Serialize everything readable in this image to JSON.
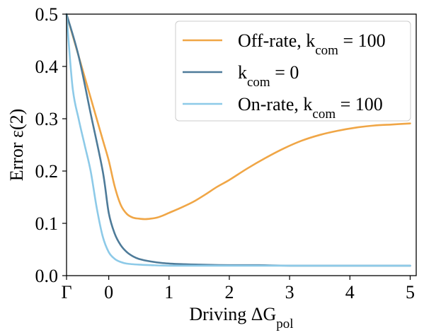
{
  "chart_data": {
    "type": "line",
    "xlabel": "Driving ΔG_pol",
    "ylabel": "Error ε(2)",
    "xlim": [
      -0.7,
      5.1
    ],
    "ylim": [
      0.0,
      0.5
    ],
    "x_ticks": [
      {
        "value": -0.7,
        "label": "Γ"
      },
      {
        "value": 0,
        "label": "0"
      },
      {
        "value": 1,
        "label": "1"
      },
      {
        "value": 2,
        "label": "2"
      },
      {
        "value": 3,
        "label": "3"
      },
      {
        "value": 4,
        "label": "4"
      },
      {
        "value": 5,
        "label": "5"
      }
    ],
    "y_ticks": [
      {
        "value": 0.0,
        "label": "0.0"
      },
      {
        "value": 0.1,
        "label": "0.1"
      },
      {
        "value": 0.2,
        "label": "0.2"
      },
      {
        "value": 0.3,
        "label": "0.3"
      },
      {
        "value": 0.4,
        "label": "0.4"
      },
      {
        "value": 0.5,
        "label": "0.5"
      }
    ],
    "grid": false,
    "legend_position": "top-right",
    "series": [
      {
        "name": "Off-rate, k_com = 100",
        "color": "#F0A646",
        "x": [
          -0.7,
          -0.5,
          -0.3,
          -0.1,
          0.0,
          0.1,
          0.2,
          0.3,
          0.4,
          0.5,
          0.6,
          0.7,
          0.8,
          0.9,
          1.0,
          1.2,
          1.4,
          1.6,
          1.8,
          2.0,
          2.3,
          2.6,
          2.9,
          3.2,
          3.5,
          3.8,
          4.1,
          4.4,
          4.7,
          5.0
        ],
        "y": [
          0.5,
          0.42,
          0.34,
          0.26,
          0.22,
          0.17,
          0.135,
          0.118,
          0.111,
          0.109,
          0.108,
          0.109,
          0.111,
          0.115,
          0.12,
          0.13,
          0.141,
          0.155,
          0.17,
          0.183,
          0.205,
          0.225,
          0.243,
          0.258,
          0.269,
          0.277,
          0.283,
          0.287,
          0.289,
          0.291
        ]
      },
      {
        "name": "k_com = 0",
        "color": "#4E7B99",
        "x": [
          -0.7,
          -0.5,
          -0.3,
          -0.1,
          0.0,
          0.1,
          0.2,
          0.3,
          0.4,
          0.5,
          0.7,
          0.9,
          1.2,
          1.5,
          2.0,
          2.5,
          3.0,
          4.0,
          5.0
        ],
        "y": [
          0.5,
          0.42,
          0.31,
          0.2,
          0.12,
          0.08,
          0.058,
          0.045,
          0.037,
          0.032,
          0.027,
          0.024,
          0.022,
          0.021,
          0.02,
          0.02,
          0.019,
          0.019,
          0.019
        ]
      },
      {
        "name": "On-rate, k_com = 100",
        "color": "#8DCAE8",
        "x": [
          -0.7,
          -0.6,
          -0.5,
          -0.4,
          -0.3,
          -0.2,
          -0.1,
          0.0,
          0.1,
          0.2,
          0.3,
          0.5,
          0.7,
          1.0,
          1.5,
          2.0,
          3.0,
          4.0,
          5.0
        ],
        "y": [
          0.5,
          0.36,
          0.3,
          0.25,
          0.2,
          0.13,
          0.075,
          0.045,
          0.032,
          0.026,
          0.023,
          0.021,
          0.02,
          0.019,
          0.019,
          0.019,
          0.019,
          0.019,
          0.019
        ]
      }
    ]
  }
}
